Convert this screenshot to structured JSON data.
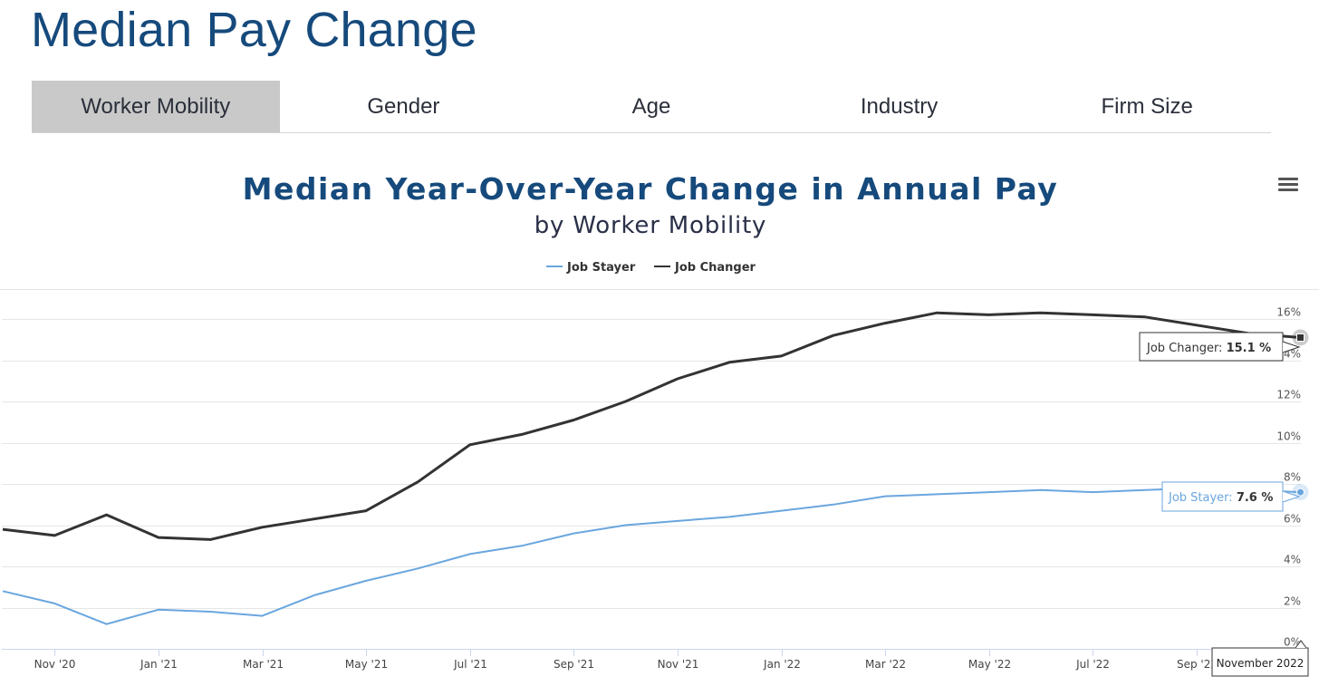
{
  "page": {
    "title": "Median Pay Change"
  },
  "tabs": [
    {
      "label": "Worker Mobility",
      "active": true
    },
    {
      "label": "Gender",
      "active": false
    },
    {
      "label": "Age",
      "active": false
    },
    {
      "label": "Industry",
      "active": false
    },
    {
      "label": "Firm Size",
      "active": false
    }
  ],
  "chart_menu": {
    "icon": "hamburger-menu-icon"
  },
  "tooltip": {
    "date": "November 2022",
    "job_changer_label": "Job Changer: ",
    "job_changer_value": "15.1 %",
    "job_stayer_label": "Job Stayer: ",
    "job_stayer_value": "7.6 %"
  },
  "chart_data": {
    "type": "line",
    "title": "Median Year-Over-Year Change in Annual Pay",
    "subtitle": "by Worker Mobility",
    "x": [
      "2020-10",
      "2020-11",
      "2020-12",
      "2021-01",
      "2021-02",
      "2021-03",
      "2021-04",
      "2021-05",
      "2021-06",
      "2021-07",
      "2021-08",
      "2021-09",
      "2021-10",
      "2021-11",
      "2021-12",
      "2022-01",
      "2022-02",
      "2022-03",
      "2022-04",
      "2022-05",
      "2022-06",
      "2022-07",
      "2022-08",
      "2022-09",
      "2022-10",
      "2022-11"
    ],
    "x_tick_labels": [
      "Nov '20",
      "Jan '21",
      "Mar '21",
      "May '21",
      "Jul '21",
      "Sep '21",
      "Nov '21",
      "Jan '22",
      "Mar '22",
      "May '22",
      "Jul '22",
      "Sep '22"
    ],
    "x_tick_months": [
      "2020-11",
      "2021-01",
      "2021-03",
      "2021-05",
      "2021-07",
      "2021-09",
      "2021-11",
      "2022-01",
      "2022-03",
      "2022-05",
      "2022-07",
      "2022-09"
    ],
    "y_tick_labels": [
      "0%",
      "2%",
      "4%",
      "6%",
      "8%",
      "10%",
      "12%",
      "14%",
      "16%"
    ],
    "y_ticks": [
      0,
      2,
      4,
      6,
      8,
      10,
      12,
      14,
      16
    ],
    "ylim": [
      0,
      16
    ],
    "grid": true,
    "legend_position": "top-center",
    "series": [
      {
        "name": "Job Stayer",
        "color": "#6aa6de",
        "values": [
          2.8,
          2.2,
          1.2,
          1.9,
          1.8,
          1.6,
          2.6,
          3.3,
          3.9,
          4.6,
          5.0,
          5.6,
          6.0,
          6.2,
          6.4,
          6.7,
          7.0,
          7.4,
          7.5,
          7.6,
          7.7,
          7.6,
          7.7,
          7.8,
          7.7,
          7.6
        ]
      },
      {
        "name": "Job Changer",
        "color": "#333333",
        "values": [
          5.8,
          5.5,
          6.5,
          5.4,
          5.3,
          5.9,
          6.3,
          6.7,
          8.1,
          9.9,
          10.4,
          11.1,
          12.0,
          13.1,
          13.9,
          14.2,
          15.2,
          15.8,
          16.3,
          16.2,
          16.3,
          16.2,
          16.1,
          15.7,
          15.3,
          15.1
        ]
      }
    ]
  }
}
